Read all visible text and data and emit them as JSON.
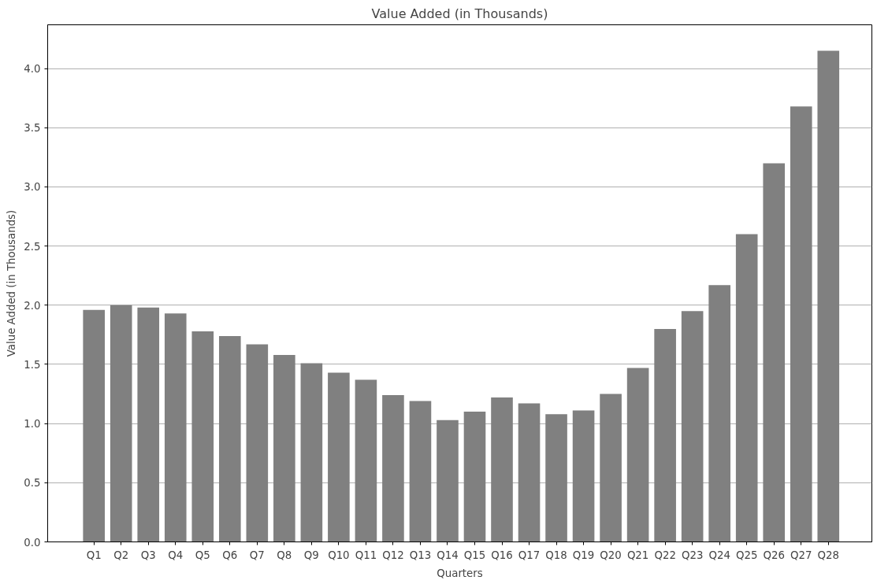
{
  "chart_data": {
    "type": "bar",
    "title": "Value Added (in Thousands)",
    "xlabel": "Quarters",
    "ylabel": "Value Added (in Thousands)",
    "categories": [
      "Q1",
      "Q2",
      "Q3",
      "Q4",
      "Q5",
      "Q6",
      "Q7",
      "Q8",
      "Q9",
      "Q10",
      "Q11",
      "Q12",
      "Q13",
      "Q14",
      "Q15",
      "Q16",
      "Q17",
      "Q18",
      "Q19",
      "Q20",
      "Q21",
      "Q22",
      "Q23",
      "Q24",
      "Q25",
      "Q26",
      "Q27",
      "Q28"
    ],
    "values": [
      1.96,
      2.0,
      1.98,
      1.93,
      1.78,
      1.74,
      1.67,
      1.58,
      1.51,
      1.43,
      1.37,
      1.24,
      1.19,
      1.03,
      1.1,
      1.22,
      1.17,
      1.08,
      1.11,
      1.25,
      1.47,
      1.8,
      1.95,
      2.17,
      2.6,
      3.2,
      3.68,
      4.15
    ],
    "color": "#808080",
    "ylim": [
      0,
      4.37
    ],
    "yticks": [
      {
        "value": 0,
        "label": "0.0"
      },
      {
        "value": 0.5,
        "label": "0.5"
      },
      {
        "value": 1,
        "label": "1.0"
      },
      {
        "value": 1.5,
        "label": "1.5"
      },
      {
        "value": 2,
        "label": "2.0"
      },
      {
        "value": 2.5,
        "label": "2.5"
      },
      {
        "value": 3,
        "label": "3.0"
      },
      {
        "value": 3.5,
        "label": "3.5"
      },
      {
        "value": 4,
        "label": "4.0"
      }
    ],
    "grid": "y"
  }
}
